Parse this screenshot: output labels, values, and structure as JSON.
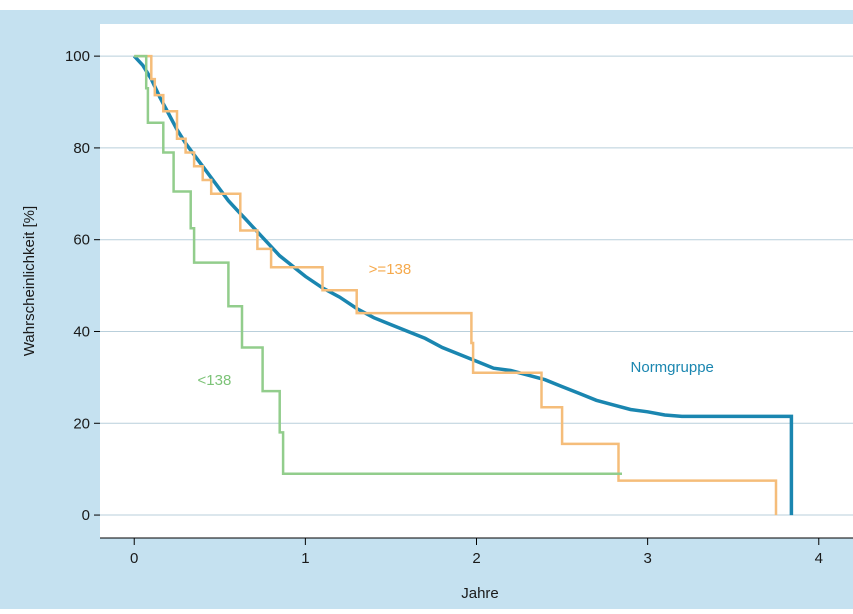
{
  "chart_data": {
    "type": "line",
    "xlabel": "Jahre",
    "ylabel": "Wahrscheinlichkeit [%]",
    "xlim": [
      -0.2,
      4.2
    ],
    "ylim": [
      -5,
      107
    ],
    "x_ticks": [
      0,
      1,
      2,
      3,
      4
    ],
    "y_ticks": [
      0,
      20,
      40,
      60,
      80,
      100
    ],
    "grid": true,
    "grid_axis": "y",
    "series": [
      {
        "name": "Normgruppe",
        "step": false,
        "color": "#1a86b0",
        "points": [
          [
            0,
            100
          ],
          [
            0.05,
            98
          ],
          [
            0.1,
            95
          ],
          [
            0.15,
            91
          ],
          [
            0.2,
            87.5
          ],
          [
            0.25,
            84
          ],
          [
            0.3,
            81
          ],
          [
            0.35,
            78.5
          ],
          [
            0.4,
            76
          ],
          [
            0.45,
            73.5
          ],
          [
            0.5,
            71
          ],
          [
            0.55,
            68.5
          ],
          [
            0.6,
            66.5
          ],
          [
            0.65,
            64.5
          ],
          [
            0.7,
            62.5
          ],
          [
            0.75,
            60.5
          ],
          [
            0.8,
            58.5
          ],
          [
            0.85,
            56.5
          ],
          [
            0.9,
            55
          ],
          [
            0.95,
            53.5
          ],
          [
            1.0,
            52
          ],
          [
            1.1,
            49.5
          ],
          [
            1.2,
            47.5
          ],
          [
            1.3,
            45
          ],
          [
            1.4,
            43
          ],
          [
            1.5,
            41.5
          ],
          [
            1.6,
            40
          ],
          [
            1.7,
            38.5
          ],
          [
            1.8,
            36.5
          ],
          [
            1.9,
            35
          ],
          [
            2.0,
            33.5
          ],
          [
            2.1,
            32
          ],
          [
            2.2,
            31.5
          ],
          [
            2.3,
            30.5
          ],
          [
            2.4,
            29.5
          ],
          [
            2.5,
            28
          ],
          [
            2.6,
            26.5
          ],
          [
            2.7,
            25
          ],
          [
            2.8,
            24
          ],
          [
            2.9,
            23
          ],
          [
            3.0,
            22.5
          ],
          [
            3.1,
            21.8
          ],
          [
            3.2,
            21.5
          ],
          [
            3.4,
            21.5
          ],
          [
            3.6,
            21.5
          ],
          [
            3.84,
            21.5
          ],
          [
            3.84,
            0
          ]
        ]
      },
      {
        "name": ">=138",
        "step": true,
        "color": "#f5bd7a",
        "points": [
          [
            0,
            100
          ],
          [
            0.1,
            100
          ],
          [
            0.1,
            95
          ],
          [
            0.12,
            95
          ],
          [
            0.12,
            91.5
          ],
          [
            0.17,
            91.5
          ],
          [
            0.17,
            88
          ],
          [
            0.25,
            88
          ],
          [
            0.25,
            82
          ],
          [
            0.3,
            82
          ],
          [
            0.3,
            79
          ],
          [
            0.35,
            79
          ],
          [
            0.35,
            76
          ],
          [
            0.4,
            76
          ],
          [
            0.4,
            73
          ],
          [
            0.45,
            73
          ],
          [
            0.45,
            70
          ],
          [
            0.62,
            70
          ],
          [
            0.62,
            62
          ],
          [
            0.72,
            62
          ],
          [
            0.72,
            58
          ],
          [
            0.8,
            58
          ],
          [
            0.8,
            54
          ],
          [
            1.1,
            54
          ],
          [
            1.1,
            49
          ],
          [
            1.3,
            49
          ],
          [
            1.3,
            44
          ],
          [
            1.97,
            44
          ],
          [
            1.97,
            37.5
          ],
          [
            1.98,
            37.5
          ],
          [
            1.98,
            31
          ],
          [
            2.38,
            31
          ],
          [
            2.38,
            23.5
          ],
          [
            2.5,
            23.5
          ],
          [
            2.5,
            15.5
          ],
          [
            2.83,
            15.5
          ],
          [
            2.83,
            7.5
          ],
          [
            3.75,
            7.5
          ],
          [
            3.75,
            0
          ]
        ]
      },
      {
        "name": "<138",
        "step": true,
        "color": "#92cd8c",
        "points": [
          [
            0,
            100
          ],
          [
            0.07,
            100
          ],
          [
            0.07,
            93
          ],
          [
            0.08,
            93
          ],
          [
            0.08,
            85.5
          ],
          [
            0.17,
            85.5
          ],
          [
            0.17,
            79
          ],
          [
            0.23,
            79
          ],
          [
            0.23,
            70.5
          ],
          [
            0.33,
            70.5
          ],
          [
            0.33,
            62.5
          ],
          [
            0.35,
            62.5
          ],
          [
            0.35,
            55
          ],
          [
            0.55,
            55
          ],
          [
            0.55,
            45.5
          ],
          [
            0.63,
            45.5
          ],
          [
            0.63,
            36.5
          ],
          [
            0.75,
            36.5
          ],
          [
            0.75,
            27
          ],
          [
            0.85,
            27
          ],
          [
            0.85,
            18
          ],
          [
            0.87,
            18
          ],
          [
            0.87,
            9
          ],
          [
            2.85,
            9
          ]
        ]
      }
    ],
    "annotations": [
      {
        "text": ">=138",
        "x": 1.37,
        "y": 52.5,
        "color": "#f5a94c"
      },
      {
        "text": "<138",
        "x": 0.37,
        "y": 28.3,
        "color": "#7cc377"
      },
      {
        "text": "Normgruppe",
        "x": 2.9,
        "y": 31.2,
        "color": "#1a86b0"
      }
    ],
    "colors": {
      "frame_background": "#c5e1f0",
      "plot_background": "#ffffff",
      "grid": "#b9cfdb",
      "axis": "#000000",
      "text": "#1a1a1a"
    }
  }
}
